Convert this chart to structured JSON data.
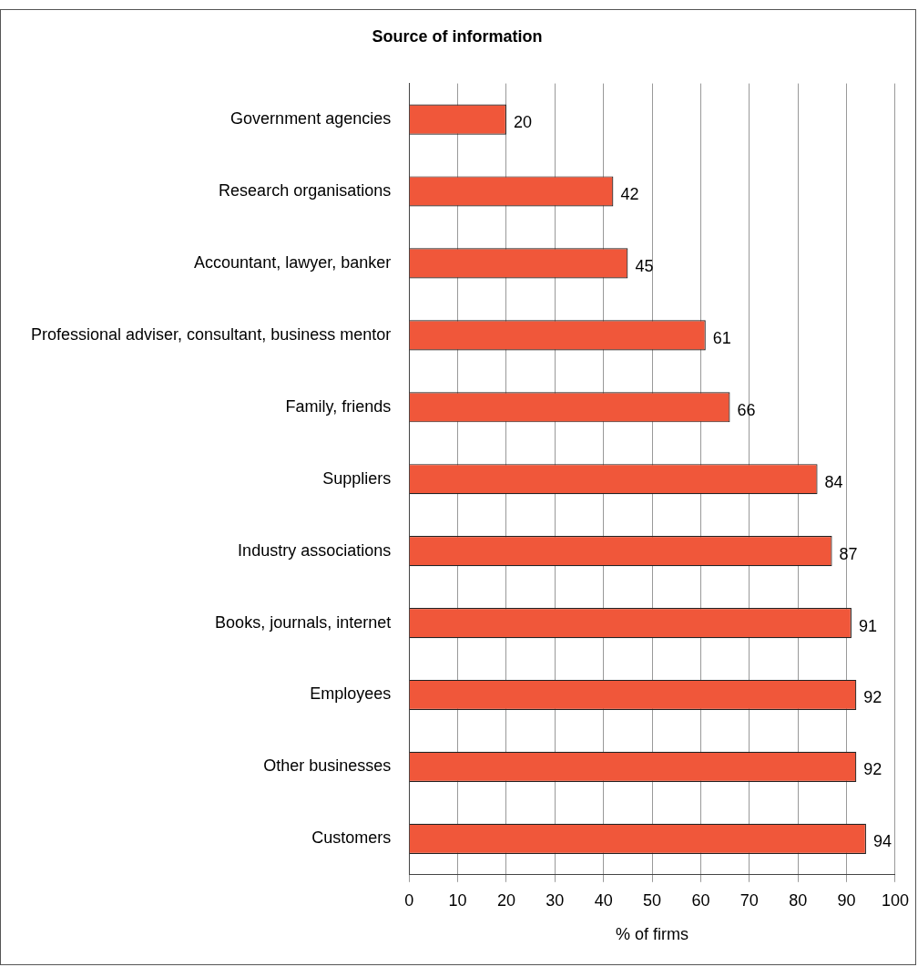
{
  "chart_data": {
    "type": "bar",
    "orientation": "horizontal",
    "title": "Source of information",
    "xlabel": "% of firms",
    "categories": [
      "Government agencies",
      "Research organisations",
      "Accountant, lawyer, banker",
      "Professional adviser, consultant, business mentor",
      "Family, friends",
      "Suppliers",
      "Industry associations",
      "Books, journals, internet",
      "Employees",
      "Other businesses",
      "Customers"
    ],
    "values": [
      20,
      42,
      45,
      61,
      66,
      84,
      87,
      91,
      92,
      92,
      94
    ],
    "color": "#f0573a",
    "xlim": [
      0,
      100
    ],
    "xticks": [
      0,
      10,
      20,
      30,
      40,
      50,
      60,
      70,
      80,
      90,
      100
    ],
    "grid": "x",
    "data_labels": true
  }
}
